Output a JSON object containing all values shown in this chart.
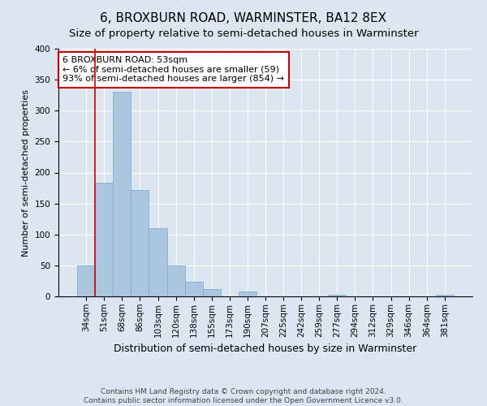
{
  "title": "6, BROXBURN ROAD, WARMINSTER, BA12 8EX",
  "subtitle": "Size of property relative to semi-detached houses in Warminster",
  "xlabel": "Distribution of semi-detached houses by size in Warminster",
  "ylabel": "Number of semi-detached properties",
  "categories": [
    "34sqm",
    "51sqm",
    "68sqm",
    "86sqm",
    "103sqm",
    "120sqm",
    "138sqm",
    "155sqm",
    "173sqm",
    "190sqm",
    "207sqm",
    "225sqm",
    "242sqm",
    "259sqm",
    "277sqm",
    "294sqm",
    "312sqm",
    "329sqm",
    "346sqm",
    "364sqm",
    "381sqm"
  ],
  "values": [
    50,
    183,
    330,
    172,
    110,
    50,
    23,
    12,
    0,
    8,
    0,
    0,
    0,
    0,
    2,
    0,
    0,
    0,
    0,
    0,
    3
  ],
  "bar_color": "#adc6e0",
  "bar_edge_color": "#6aaad4",
  "property_line_color": "#cc0000",
  "annotation_text": "6 BROXBURN ROAD: 53sqm\n← 6% of semi-detached houses are smaller (59)\n93% of semi-detached houses are larger (854) →",
  "annotation_box_color": "#ffffff",
  "annotation_box_edge_color": "#cc0000",
  "ylim": [
    0,
    400
  ],
  "yticks": [
    0,
    50,
    100,
    150,
    200,
    250,
    300,
    350,
    400
  ],
  "background_color": "#dde6f0",
  "plot_background_color": "#dde6f0",
  "footnote": "Contains HM Land Registry data © Crown copyright and database right 2024.\nContains public sector information licensed under the Open Government Licence v3.0.",
  "title_fontsize": 11,
  "subtitle_fontsize": 9.5,
  "xlabel_fontsize": 9,
  "ylabel_fontsize": 8,
  "tick_fontsize": 7.5,
  "annotation_fontsize": 8,
  "footnote_fontsize": 6.5
}
